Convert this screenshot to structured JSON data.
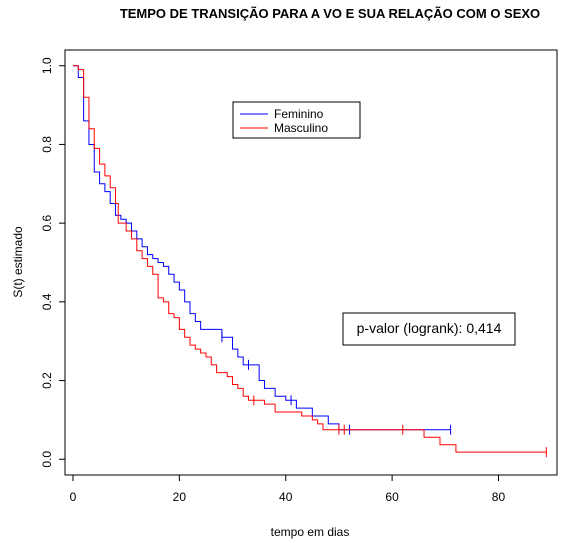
{
  "chart_data": {
    "type": "step",
    "title": "TEMPO DE TRANSIÇÃO PARA A VO E SUA RELAÇÃO COM O SEXO",
    "x_label": "tempo em dias",
    "y_label": "S(t) estimado",
    "annotation": "p-valor (logrank): 0,414",
    "xlim": [
      -1.5,
      91
    ],
    "ylim": [
      -0.04,
      1.04
    ],
    "xticks": [
      0,
      20,
      40,
      60,
      80
    ],
    "yticks": [
      {
        "value": 0,
        "label": "0.0"
      },
      {
        "value": 0.2,
        "label": "0.2"
      },
      {
        "value": 0.4,
        "label": "0.4"
      },
      {
        "value": 0.6,
        "label": "0.6"
      },
      {
        "value": 0.8,
        "label": "0.8"
      },
      {
        "value": 1,
        "label": "1.0"
      }
    ],
    "series": [
      {
        "name": "Feminino",
        "color": "#0000ff",
        "x": [
          0,
          1,
          2,
          3,
          4,
          5,
          6,
          7,
          8,
          9,
          10,
          11,
          12,
          13,
          14,
          15,
          16,
          17,
          18,
          19,
          20,
          21,
          22,
          23,
          24,
          28,
          30,
          31,
          32,
          35,
          36,
          38,
          40,
          42,
          45,
          48,
          50,
          71
        ],
        "y": [
          1,
          0.97,
          0.86,
          0.8,
          0.73,
          0.7,
          0.68,
          0.65,
          0.62,
          0.61,
          0.6,
          0.58,
          0.56,
          0.54,
          0.52,
          0.51,
          0.5,
          0.49,
          0.47,
          0.45,
          0.43,
          0.4,
          0.37,
          0.35,
          0.33,
          0.31,
          0.28,
          0.26,
          0.24,
          0.2,
          0.18,
          0.16,
          0.15,
          0.13,
          0.11,
          0.09,
          0.075,
          0.075
        ],
        "censor_x": [
          28,
          33,
          41,
          52,
          71
        ],
        "censor_y": [
          0.31,
          0.24,
          0.15,
          0.075,
          0.075
        ]
      },
      {
        "name": "Masculino",
        "color": "#ff0000",
        "x": [
          0,
          1,
          2,
          3,
          4,
          5,
          6,
          7,
          8,
          8.5,
          10,
          11,
          12,
          13,
          14,
          15,
          16,
          17,
          18,
          19,
          20,
          21,
          22,
          23,
          24,
          25,
          26,
          27,
          29,
          30,
          31,
          32,
          33,
          36,
          38,
          43,
          45,
          46,
          47,
          66,
          67,
          69,
          72,
          89
        ],
        "y": [
          1,
          0.99,
          0.92,
          0.84,
          0.79,
          0.75,
          0.72,
          0.69,
          0.65,
          0.6,
          0.58,
          0.56,
          0.53,
          0.51,
          0.49,
          0.47,
          0.41,
          0.4,
          0.37,
          0.36,
          0.33,
          0.31,
          0.29,
          0.28,
          0.27,
          0.26,
          0.24,
          0.22,
          0.21,
          0.19,
          0.18,
          0.16,
          0.15,
          0.14,
          0.12,
          0.11,
          0.1,
          0.09,
          0.075,
          0.056,
          0.056,
          0.037,
          0.018,
          0.018
        ],
        "censor_x": [
          34,
          50,
          51,
          62,
          89
        ],
        "censor_y": [
          0.15,
          0.075,
          0.075,
          0.075,
          0.018
        ]
      }
    ]
  }
}
